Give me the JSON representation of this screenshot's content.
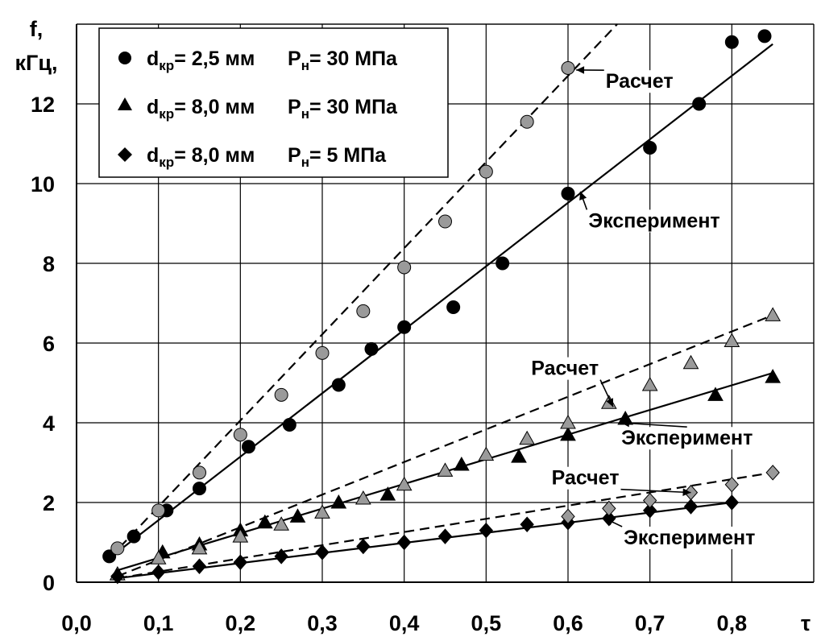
{
  "chart_data": {
    "type": "scatter",
    "ylabel_line1": "f,",
    "ylabel_line2": "кГц,",
    "xlabel": "τ",
    "xlim": [
      0,
      0.9
    ],
    "ylim": [
      0,
      14
    ],
    "x_ticks": [
      "0,0",
      "0,1",
      "0,2",
      "0,3",
      "0,4",
      "0,5",
      "0,6",
      "0,7",
      "0,8"
    ],
    "y_ticks": [
      "0",
      "2",
      "4",
      "6",
      "8",
      "10",
      "12"
    ],
    "grid": true,
    "legend_position": "top-left",
    "legend": [
      {
        "marker": "circle",
        "d": "d",
        "d_sub": "кр",
        "d_eq": "= 2,5 мм",
        "p": "P",
        "p_sub": "н",
        "p_eq": "= 30 МПа"
      },
      {
        "marker": "triangle",
        "d": "d",
        "d_sub": "кр",
        "d_eq": "= 8,0 мм",
        "p": "P",
        "p_sub": "н",
        "p_eq": "= 30 МПа"
      },
      {
        "marker": "diamond",
        "d": "d",
        "d_sub": "кр",
        "d_eq": "= 8,0 мм",
        "p": "P",
        "p_sub": "н",
        "p_eq": "=  5 МПа"
      }
    ],
    "series": [
      {
        "marker": "circle",
        "kind": "experiment",
        "color": "#000000",
        "x": [
          0.04,
          0.07,
          0.11,
          0.15,
          0.21,
          0.26,
          0.32,
          0.36,
          0.4,
          0.46,
          0.52,
          0.6,
          0.7,
          0.76,
          0.8,
          0.84
        ],
        "y": [
          0.65,
          1.15,
          1.8,
          2.35,
          3.4,
          3.95,
          4.95,
          5.85,
          6.4,
          6.9,
          8.0,
          9.75,
          10.9,
          12.0,
          13.55,
          13.7
        ]
      },
      {
        "marker": "circle",
        "kind": "calculation",
        "color": "#9a9a9a",
        "x": [
          0.05,
          0.1,
          0.15,
          0.2,
          0.25,
          0.3,
          0.35,
          0.4,
          0.45,
          0.5,
          0.55,
          0.6
        ],
        "y": [
          0.85,
          1.8,
          2.75,
          3.7,
          4.7,
          5.75,
          6.8,
          7.9,
          9.05,
          10.3,
          11.55,
          12.9
        ]
      },
      {
        "marker": "triangle",
        "kind": "experiment",
        "color": "#000000",
        "x": [
          0.05,
          0.105,
          0.15,
          0.2,
          0.23,
          0.27,
          0.32,
          0.38,
          0.47,
          0.54,
          0.6,
          0.67,
          0.78,
          0.85
        ],
        "y": [
          0.2,
          0.75,
          0.95,
          1.3,
          1.5,
          1.65,
          2.0,
          2.2,
          2.95,
          3.15,
          3.7,
          4.1,
          4.7,
          5.15
        ]
      },
      {
        "marker": "triangle",
        "kind": "calculation",
        "color": "#9a9a9a",
        "x": [
          0.05,
          0.1,
          0.15,
          0.2,
          0.25,
          0.3,
          0.35,
          0.4,
          0.45,
          0.5,
          0.55,
          0.6,
          0.65,
          0.7,
          0.75,
          0.8,
          0.85
        ],
        "y": [
          0.2,
          0.6,
          0.85,
          1.15,
          1.45,
          1.75,
          2.1,
          2.45,
          2.8,
          3.2,
          3.6,
          4.0,
          4.5,
          4.95,
          5.5,
          6.05,
          6.7
        ]
      },
      {
        "marker": "diamond",
        "kind": "experiment",
        "color": "#000000",
        "x": [
          0.05,
          0.1,
          0.15,
          0.2,
          0.25,
          0.3,
          0.35,
          0.4,
          0.45,
          0.5,
          0.55,
          0.6,
          0.65,
          0.7,
          0.75,
          0.8
        ],
        "y": [
          0.15,
          0.25,
          0.4,
          0.5,
          0.65,
          0.75,
          0.9,
          1.0,
          1.15,
          1.3,
          1.45,
          1.5,
          1.6,
          1.8,
          1.9,
          2.0
        ]
      },
      {
        "marker": "diamond",
        "kind": "calculation",
        "color": "#9a9a9a",
        "x": [
          0.6,
          0.65,
          0.7,
          0.75,
          0.8,
          0.85
        ],
        "y": [
          1.65,
          1.85,
          2.05,
          2.25,
          2.45,
          2.75
        ]
      }
    ],
    "fit_lines": [
      {
        "style": "solid",
        "x": [
          0.04,
          0.85
        ],
        "y": [
          0.6,
          13.5
        ]
      },
      {
        "style": "dashed",
        "x": [
          0.04,
          0.66
        ],
        "y": [
          0.6,
          14.0
        ]
      },
      {
        "style": "solid",
        "x": [
          0.05,
          0.85
        ],
        "y": [
          0.3,
          5.25
        ]
      },
      {
        "style": "dashed",
        "x": [
          0.05,
          0.85
        ],
        "y": [
          0.15,
          6.7
        ]
      },
      {
        "style": "solid",
        "x": [
          0.05,
          0.8
        ],
        "y": [
          0.1,
          2.0
        ]
      },
      {
        "style": "dashed",
        "x": [
          0.05,
          0.85
        ],
        "y": [
          0.1,
          2.75
        ]
      }
    ],
    "annotations": [
      {
        "text": "Расчет",
        "label_x": 0.646,
        "label_y": 12.4,
        "arrow_x": 0.61,
        "arrow_y": 12.85
      },
      {
        "text": "Эксперимент",
        "label_x": 0.625,
        "label_y": 8.9,
        "arrow_x": 0.615,
        "arrow_y": 9.8
      },
      {
        "text": "Расчет",
        "label_x": 0.555,
        "label_y": 5.2,
        "arrow_x": 0.655,
        "arrow_y": 4.4
      },
      {
        "text": "Эксперимент",
        "label_x": 0.665,
        "label_y": 3.45,
        "arrow_x": 0.665,
        "arrow_y": 4.0
      },
      {
        "text": "Расчет",
        "label_x": 0.58,
        "label_y": 2.45,
        "arrow_x": 0.75,
        "arrow_y": 2.25
      },
      {
        "text": "Эксперимент",
        "label_x": 0.668,
        "label_y": 0.95,
        "arrow_x": 0.645,
        "arrow_y": 1.6
      }
    ]
  }
}
